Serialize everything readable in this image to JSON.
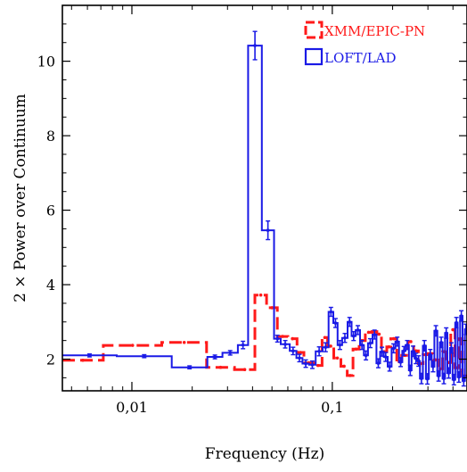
{
  "chart_data": {
    "type": "line",
    "title": "",
    "xlabel": "Frequency (Hz)",
    "ylabel": "2 × Power over Continuum",
    "xscale": "log",
    "xlim": [
      0.0045,
      0.47
    ],
    "ylim": [
      1.15,
      11.5
    ],
    "xticks": [
      {
        "value": 0.01,
        "label": "0,01"
      },
      {
        "value": 0.1,
        "label": "0,1"
      }
    ],
    "yticks": [
      {
        "value": 2,
        "label": "2"
      },
      {
        "value": 4,
        "label": "4"
      },
      {
        "value": 6,
        "label": "6"
      },
      {
        "value": 8,
        "label": "8"
      },
      {
        "value": 10,
        "label": "10"
      }
    ],
    "grid": false,
    "legend_position": "top-right",
    "series": [
      {
        "name": "XMM/EPIC-PN",
        "color": "#ff1a1a",
        "line_style": "dashed",
        "x": [
          0.0045,
          0.0072,
          0.0141,
          0.0236,
          0.0325,
          0.0411,
          0.047,
          0.0532,
          0.06,
          0.0667,
          0.0722,
          0.0808,
          0.0889,
          0.0948,
          0.1017,
          0.1104,
          0.1187,
          0.1269,
          0.1361,
          0.1461,
          0.1575,
          0.1669,
          0.1758,
          0.187,
          0.1958,
          0.2097,
          0.222,
          0.2386,
          0.2546,
          0.2687,
          0.2837,
          0.2997,
          0.3178,
          0.336,
          0.355,
          0.3702,
          0.3899,
          0.4092,
          0.4279,
          0.445
        ],
        "y": [
          1.97,
          2.37,
          2.45,
          1.78,
          1.72,
          3.72,
          3.38,
          2.61,
          2.55,
          2.18,
          1.9,
          1.83,
          2.58,
          2.35,
          2.03,
          1.81,
          1.56,
          2.27,
          2.5,
          2.72,
          2.74,
          2.67,
          2.2,
          2.33,
          2.55,
          1.93,
          2.1,
          2.47,
          2.22,
          1.88,
          2.12,
          2.15,
          1.98,
          1.74,
          2.2,
          1.91,
          2.79,
          1.77,
          2.55,
          1.55
        ]
      },
      {
        "name": "LOFT/LAD",
        "color": "#1a1ae6",
        "line_style": "solid",
        "x": [
          0.0045,
          0.0084,
          0.0158,
          0.0238,
          0.0283,
          0.0338,
          0.038,
          0.0445,
          0.0512,
          0.0553,
          0.0613,
          0.0662,
          0.071,
          0.0765,
          0.0826,
          0.0895,
          0.0958,
          0.1012,
          0.1063,
          0.112,
          0.1192,
          0.1248,
          0.1308,
          0.1375,
          0.1437,
          0.1507,
          0.1588,
          0.1661,
          0.1732,
          0.1806,
          0.1889,
          0.1977,
          0.2066,
          0.2152,
          0.2235,
          0.2321,
          0.2411,
          0.2487,
          0.2574,
          0.2654,
          0.2738,
          0.2832,
          0.2932,
          0.3032,
          0.3132,
          0.3232,
          0.3343,
          0.3442,
          0.3551,
          0.3654,
          0.3751,
          0.3869,
          0.3983,
          0.4106,
          0.4221,
          0.4343,
          0.4465,
          0.459
        ],
        "y": [
          2.1,
          2.08,
          1.78,
          2.06,
          2.17,
          2.38,
          10.42,
          5.46,
          2.55,
          2.4,
          2.22,
          2.03,
          1.88,
          1.85,
          2.21,
          2.32,
          3.27,
          2.97,
          2.38,
          2.57,
          3.0,
          2.62,
          2.78,
          2.38,
          2.1,
          2.43,
          2.66,
          1.89,
          2.2,
          2.06,
          1.8,
          2.29,
          2.47,
          1.92,
          2.22,
          2.38,
          1.7,
          2.21,
          2.02,
          1.95,
          1.48,
          2.36,
          1.47,
          2.12,
          1.8,
          2.76,
          1.55,
          2.45,
          1.48,
          2.7,
          1.63,
          2.3,
          1.45,
          2.98,
          1.52,
          3.16,
          1.42,
          2.8
        ],
        "err": [
          0.04,
          0.04,
          0.04,
          0.05,
          0.06,
          0.1,
          0.38,
          0.25,
          0.09,
          0.1,
          0.1,
          0.1,
          0.1,
          0.1,
          0.12,
          0.12,
          0.12,
          0.12,
          0.12,
          0.12,
          0.12,
          0.12,
          0.12,
          0.12,
          0.12,
          0.12,
          0.12,
          0.12,
          0.12,
          0.12,
          0.12,
          0.12,
          0.12,
          0.12,
          0.12,
          0.12,
          0.14,
          0.14,
          0.14,
          0.14,
          0.14,
          0.14,
          0.14,
          0.14,
          0.14,
          0.14,
          0.14,
          0.14,
          0.14,
          0.14,
          0.14,
          0.14,
          0.14,
          0.14,
          0.14,
          0.14,
          0.14,
          0.14
        ]
      }
    ]
  }
}
